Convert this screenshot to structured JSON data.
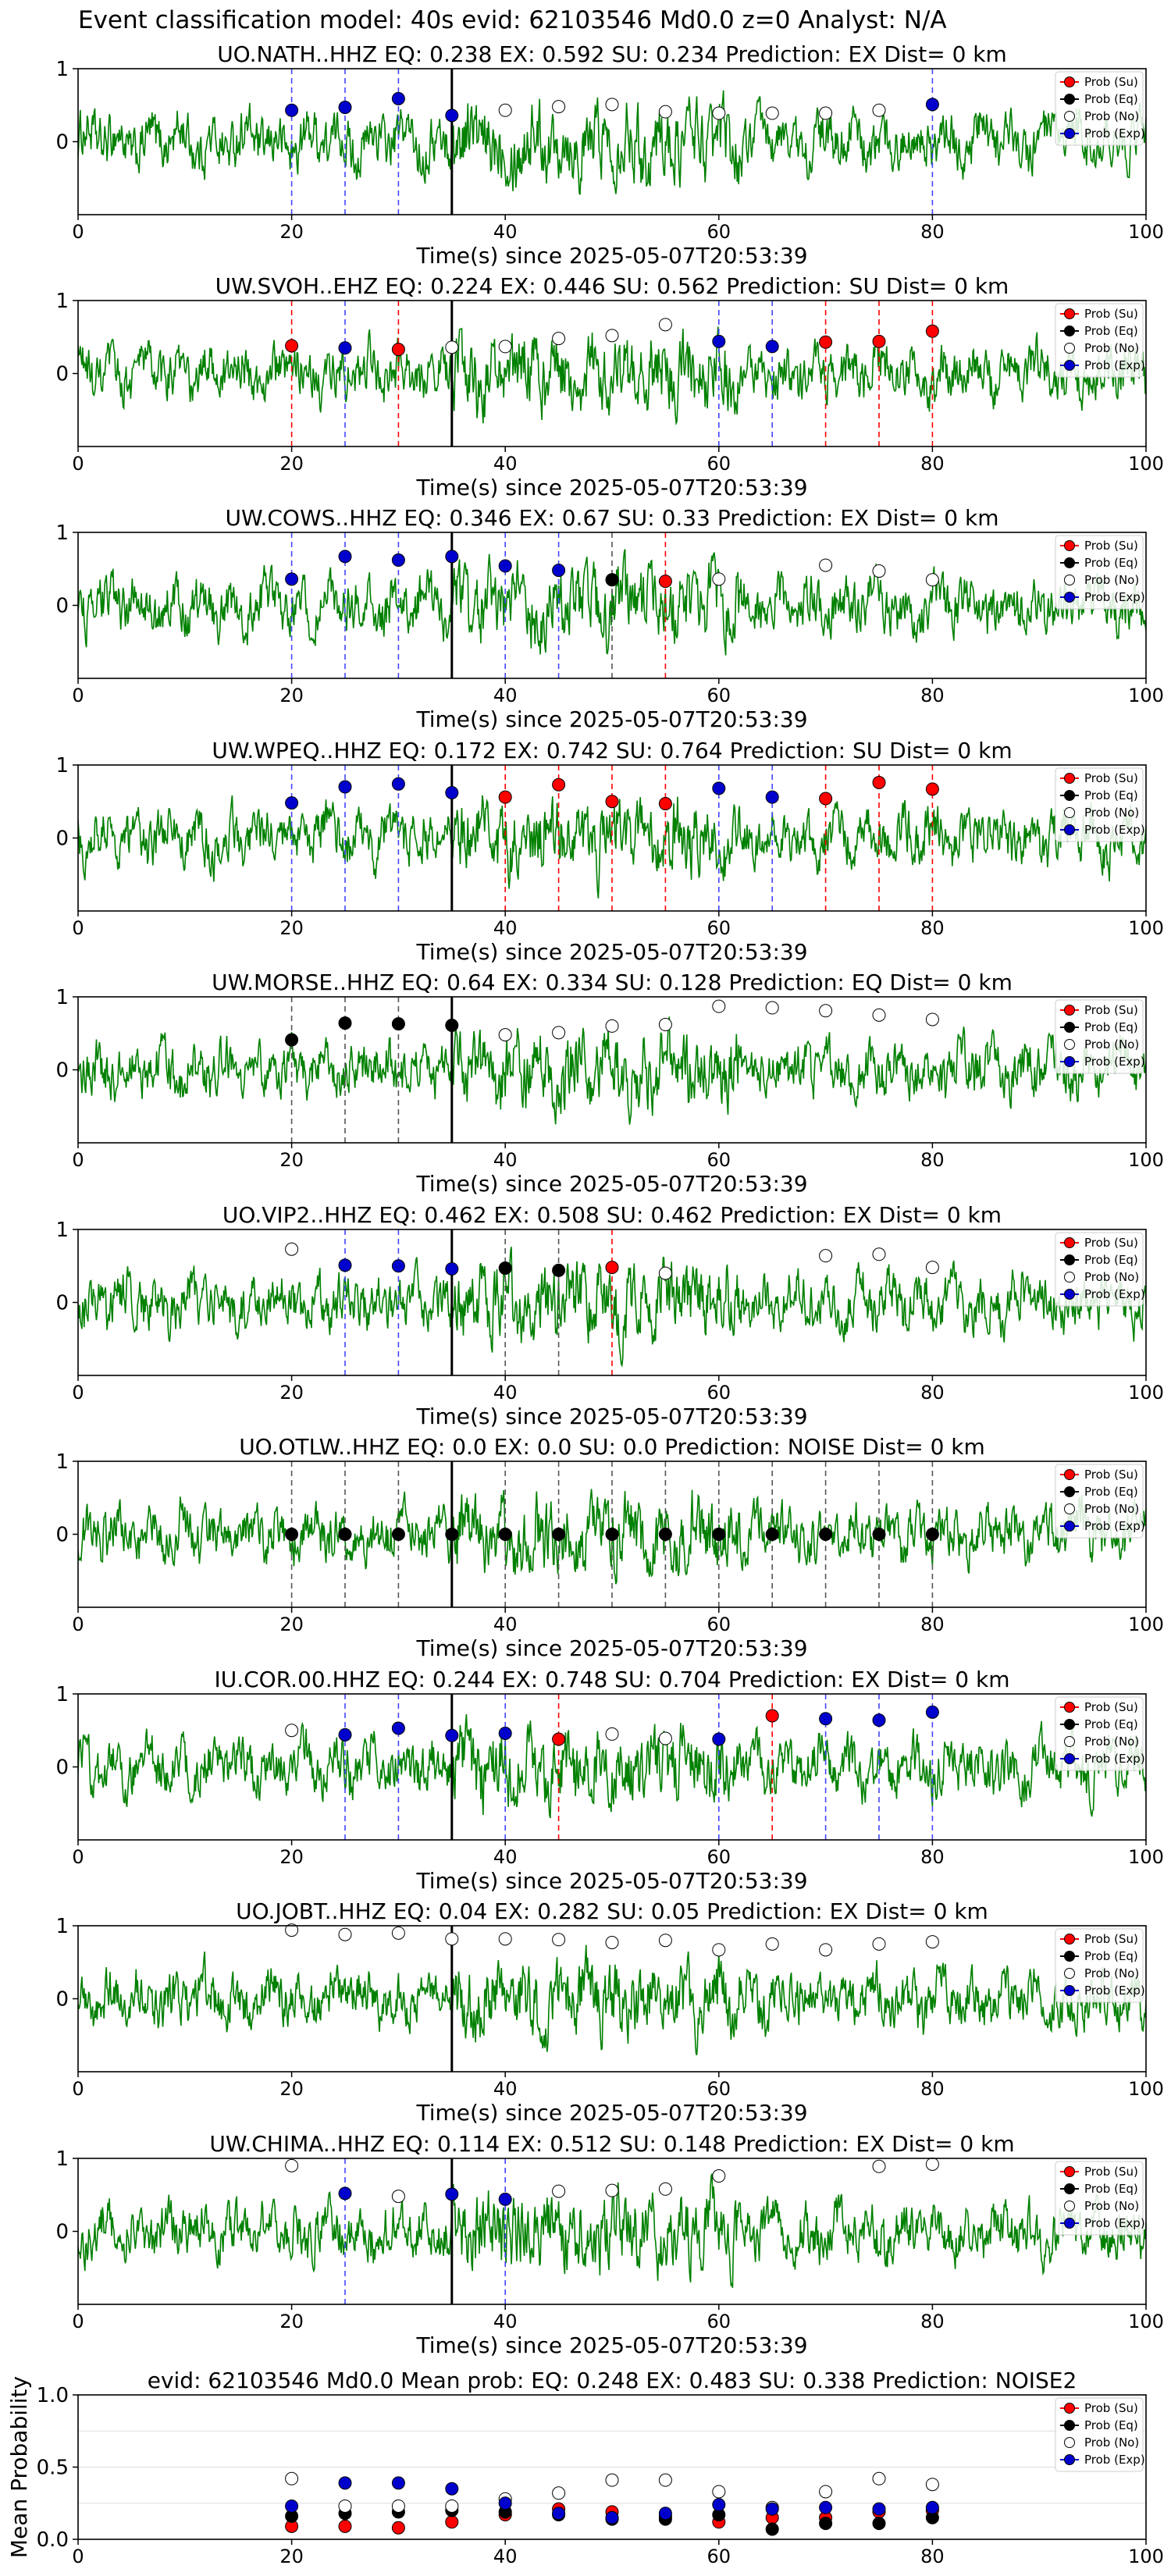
{
  "main_title": "Event classification model: 40s evid: 62103546 Md0.0 z=0 Analyst: N/A",
  "legend_labels": [
    "Prob (Su)",
    "Prob (Eq)",
    "Prob (No)",
    "Prob (Exp)"
  ],
  "colors": {
    "waveform": "#008000",
    "su": "#ff0000",
    "eq": "#000000",
    "no": "#ffffff",
    "exp": "#0000cd"
  },
  "chart_data": [
    {
      "type": "line",
      "title": "UO.NATH..HHZ   EQ: 0.238  EX: 0.592  SU: 0.234   Prediction: EX    Dist= 0 km",
      "xlabel": "Time(s) since 2025-05-07T20:53:39",
      "xlim": [
        0,
        100
      ],
      "ylim": [
        -1,
        1
      ],
      "xticks": [
        "0",
        "20",
        "40",
        "60",
        "80",
        "100"
      ],
      "yticks": [
        "1",
        "0"
      ],
      "event_marker_x": 35,
      "points": [
        {
          "x": 20,
          "y": 0.43,
          "cls": "exp"
        },
        {
          "x": 25,
          "y": 0.47,
          "cls": "exp"
        },
        {
          "x": 30,
          "y": 0.59,
          "cls": "exp"
        },
        {
          "x": 35,
          "y": 0.36,
          "cls": "exp"
        },
        {
          "x": 40,
          "y": 0.43,
          "cls": "no"
        },
        {
          "x": 45,
          "y": 0.48,
          "cls": "no"
        },
        {
          "x": 50,
          "y": 0.51,
          "cls": "no"
        },
        {
          "x": 55,
          "y": 0.41,
          "cls": "no"
        },
        {
          "x": 60,
          "y": 0.39,
          "cls": "no"
        },
        {
          "x": 65,
          "y": 0.39,
          "cls": "no"
        },
        {
          "x": 70,
          "y": 0.39,
          "cls": "no"
        },
        {
          "x": 75,
          "y": 0.43,
          "cls": "no"
        },
        {
          "x": 80,
          "y": 0.51,
          "cls": "exp"
        }
      ]
    },
    {
      "type": "line",
      "title": "UW.SVOH..EHZ   EQ: 0.224  EX: 0.446  SU: 0.562   Prediction: SU    Dist= 0 km",
      "xlabel": "Time(s) since 2025-05-07T20:53:39",
      "xlim": [
        0,
        100
      ],
      "ylim": [
        -1,
        1
      ],
      "xticks": [
        "0",
        "20",
        "40",
        "60",
        "80",
        "100"
      ],
      "yticks": [
        "1",
        "0"
      ],
      "event_marker_x": 35,
      "points": [
        {
          "x": 20,
          "y": 0.38,
          "cls": "su"
        },
        {
          "x": 25,
          "y": 0.35,
          "cls": "exp"
        },
        {
          "x": 30,
          "y": 0.33,
          "cls": "su"
        },
        {
          "x": 35,
          "y": 0.36,
          "cls": "no"
        },
        {
          "x": 40,
          "y": 0.37,
          "cls": "no"
        },
        {
          "x": 45,
          "y": 0.48,
          "cls": "no"
        },
        {
          "x": 50,
          "y": 0.52,
          "cls": "no"
        },
        {
          "x": 55,
          "y": 0.67,
          "cls": "no"
        },
        {
          "x": 60,
          "y": 0.44,
          "cls": "exp"
        },
        {
          "x": 65,
          "y": 0.37,
          "cls": "exp"
        },
        {
          "x": 70,
          "y": 0.43,
          "cls": "su"
        },
        {
          "x": 75,
          "y": 0.44,
          "cls": "su"
        },
        {
          "x": 80,
          "y": 0.58,
          "cls": "su"
        }
      ]
    },
    {
      "type": "line",
      "title": "UW.COWS..HHZ   EQ: 0.346  EX: 0.67  SU: 0.33   Prediction: EX    Dist= 0 km",
      "xlabel": "Time(s) since 2025-05-07T20:53:39",
      "xlim": [
        0,
        100
      ],
      "ylim": [
        -1,
        1
      ],
      "xticks": [
        "0",
        "20",
        "40",
        "60",
        "80",
        "100"
      ],
      "yticks": [
        "1",
        "0"
      ],
      "event_marker_x": 35,
      "points": [
        {
          "x": 20,
          "y": 0.36,
          "cls": "exp"
        },
        {
          "x": 25,
          "y": 0.67,
          "cls": "exp"
        },
        {
          "x": 30,
          "y": 0.62,
          "cls": "exp"
        },
        {
          "x": 35,
          "y": 0.67,
          "cls": "exp"
        },
        {
          "x": 40,
          "y": 0.54,
          "cls": "exp"
        },
        {
          "x": 45,
          "y": 0.48,
          "cls": "exp"
        },
        {
          "x": 50,
          "y": 0.35,
          "cls": "eq"
        },
        {
          "x": 55,
          "y": 0.33,
          "cls": "su"
        },
        {
          "x": 60,
          "y": 0.36,
          "cls": "no"
        },
        {
          "x": 70,
          "y": 0.55,
          "cls": "no"
        },
        {
          "x": 75,
          "y": 0.47,
          "cls": "no"
        },
        {
          "x": 80,
          "y": 0.35,
          "cls": "no"
        }
      ]
    },
    {
      "type": "line",
      "title": "UW.WPEQ..HHZ   EQ: 0.172  EX: 0.742  SU: 0.764   Prediction: SU    Dist= 0 km",
      "xlabel": "Time(s) since 2025-05-07T20:53:39",
      "xlim": [
        0,
        100
      ],
      "ylim": [
        -1,
        1
      ],
      "xticks": [
        "0",
        "20",
        "40",
        "60",
        "80",
        "100"
      ],
      "yticks": [
        "1",
        "0"
      ],
      "event_marker_x": 35,
      "points": [
        {
          "x": 20,
          "y": 0.48,
          "cls": "exp"
        },
        {
          "x": 25,
          "y": 0.7,
          "cls": "exp"
        },
        {
          "x": 30,
          "y": 0.74,
          "cls": "exp"
        },
        {
          "x": 35,
          "y": 0.62,
          "cls": "exp"
        },
        {
          "x": 40,
          "y": 0.56,
          "cls": "su"
        },
        {
          "x": 45,
          "y": 0.73,
          "cls": "su"
        },
        {
          "x": 50,
          "y": 0.5,
          "cls": "su"
        },
        {
          "x": 55,
          "y": 0.47,
          "cls": "su"
        },
        {
          "x": 60,
          "y": 0.68,
          "cls": "exp"
        },
        {
          "x": 65,
          "y": 0.56,
          "cls": "exp"
        },
        {
          "x": 70,
          "y": 0.54,
          "cls": "su"
        },
        {
          "x": 75,
          "y": 0.76,
          "cls": "su"
        },
        {
          "x": 80,
          "y": 0.67,
          "cls": "su"
        }
      ]
    },
    {
      "type": "line",
      "title": "UW.MORSE..HHZ   EQ: 0.64  EX: 0.334  SU: 0.128   Prediction: EQ    Dist= 0 km",
      "xlabel": "Time(s) since 2025-05-07T20:53:39",
      "xlim": [
        0,
        100
      ],
      "ylim": [
        -1,
        1
      ],
      "xticks": [
        "0",
        "20",
        "40",
        "60",
        "80",
        "100"
      ],
      "yticks": [
        "1",
        "0"
      ],
      "event_marker_x": 35,
      "points": [
        {
          "x": 20,
          "y": 0.41,
          "cls": "eq"
        },
        {
          "x": 25,
          "y": 0.64,
          "cls": "eq"
        },
        {
          "x": 30,
          "y": 0.63,
          "cls": "eq"
        },
        {
          "x": 35,
          "y": 0.61,
          "cls": "eq"
        },
        {
          "x": 40,
          "y": 0.48,
          "cls": "no"
        },
        {
          "x": 45,
          "y": 0.51,
          "cls": "no"
        },
        {
          "x": 50,
          "y": 0.6,
          "cls": "no"
        },
        {
          "x": 55,
          "y": 0.62,
          "cls": "no"
        },
        {
          "x": 60,
          "y": 0.87,
          "cls": "no"
        },
        {
          "x": 65,
          "y": 0.85,
          "cls": "no"
        },
        {
          "x": 70,
          "y": 0.81,
          "cls": "no"
        },
        {
          "x": 75,
          "y": 0.75,
          "cls": "no"
        },
        {
          "x": 80,
          "y": 0.69,
          "cls": "no"
        }
      ]
    },
    {
      "type": "line",
      "title": "UO.VIP2..HHZ   EQ: 0.462  EX: 0.508  SU: 0.462   Prediction: EX    Dist= 0 km",
      "xlabel": "Time(s) since 2025-05-07T20:53:39",
      "xlim": [
        0,
        100
      ],
      "ylim": [
        -1,
        1
      ],
      "xticks": [
        "0",
        "20",
        "40",
        "60",
        "80",
        "100"
      ],
      "yticks": [
        "1",
        "0"
      ],
      "event_marker_x": 35,
      "points": [
        {
          "x": 20,
          "y": 0.73,
          "cls": "no"
        },
        {
          "x": 25,
          "y": 0.51,
          "cls": "exp"
        },
        {
          "x": 30,
          "y": 0.5,
          "cls": "exp"
        },
        {
          "x": 35,
          "y": 0.46,
          "cls": "exp"
        },
        {
          "x": 40,
          "y": 0.47,
          "cls": "eq"
        },
        {
          "x": 45,
          "y": 0.44,
          "cls": "eq"
        },
        {
          "x": 50,
          "y": 0.48,
          "cls": "su"
        },
        {
          "x": 55,
          "y": 0.4,
          "cls": "no"
        },
        {
          "x": 70,
          "y": 0.64,
          "cls": "no"
        },
        {
          "x": 75,
          "y": 0.66,
          "cls": "no"
        },
        {
          "x": 80,
          "y": 0.48,
          "cls": "no"
        }
      ]
    },
    {
      "type": "line",
      "title": "UO.OTLW..HHZ   EQ: 0.0  EX: 0.0  SU: 0.0   Prediction: NOISE    Dist= 0 km",
      "xlabel": "Time(s) since 2025-05-07T20:53:39",
      "xlim": [
        0,
        100
      ],
      "ylim": [
        -1,
        1
      ],
      "xticks": [
        "0",
        "20",
        "40",
        "60",
        "80",
        "100"
      ],
      "yticks": [
        "1",
        "0"
      ],
      "event_marker_x": 35,
      "points": [
        {
          "x": 20,
          "y": 0.0,
          "cls": "eq"
        },
        {
          "x": 25,
          "y": 0.0,
          "cls": "eq"
        },
        {
          "x": 30,
          "y": 0.0,
          "cls": "eq"
        },
        {
          "x": 35,
          "y": 0.0,
          "cls": "eq"
        },
        {
          "x": 40,
          "y": 0.0,
          "cls": "eq"
        },
        {
          "x": 45,
          "y": 0.0,
          "cls": "eq"
        },
        {
          "x": 50,
          "y": 0.0,
          "cls": "eq"
        },
        {
          "x": 55,
          "y": 0.0,
          "cls": "eq"
        },
        {
          "x": 60,
          "y": 0.0,
          "cls": "eq"
        },
        {
          "x": 65,
          "y": 0.0,
          "cls": "eq"
        },
        {
          "x": 70,
          "y": 0.0,
          "cls": "eq"
        },
        {
          "x": 75,
          "y": 0.0,
          "cls": "eq"
        },
        {
          "x": 80,
          "y": 0.0,
          "cls": "eq"
        }
      ]
    },
    {
      "type": "line",
      "title": "IU.COR.00.HHZ   EQ: 0.244  EX: 0.748  SU: 0.704   Prediction: EX    Dist= 0 km",
      "xlabel": "Time(s) since 2025-05-07T20:53:39",
      "xlim": [
        0,
        100
      ],
      "ylim": [
        -1,
        1
      ],
      "xticks": [
        "0",
        "20",
        "40",
        "60",
        "80",
        "100"
      ],
      "yticks": [
        "1",
        "0"
      ],
      "event_marker_x": 35,
      "points": [
        {
          "x": 20,
          "y": 0.5,
          "cls": "no"
        },
        {
          "x": 25,
          "y": 0.44,
          "cls": "exp"
        },
        {
          "x": 30,
          "y": 0.53,
          "cls": "exp"
        },
        {
          "x": 35,
          "y": 0.43,
          "cls": "exp"
        },
        {
          "x": 40,
          "y": 0.46,
          "cls": "exp"
        },
        {
          "x": 45,
          "y": 0.38,
          "cls": "su"
        },
        {
          "x": 50,
          "y": 0.45,
          "cls": "no"
        },
        {
          "x": 55,
          "y": 0.39,
          "cls": "no"
        },
        {
          "x": 60,
          "y": 0.38,
          "cls": "exp"
        },
        {
          "x": 65,
          "y": 0.7,
          "cls": "su"
        },
        {
          "x": 70,
          "y": 0.66,
          "cls": "exp"
        },
        {
          "x": 75,
          "y": 0.64,
          "cls": "exp"
        },
        {
          "x": 80,
          "y": 0.75,
          "cls": "exp"
        }
      ]
    },
    {
      "type": "line",
      "title": "UO.JOBT..HHZ   EQ: 0.04  EX: 0.282  SU: 0.05   Prediction: EX    Dist= 0 km",
      "xlabel": "Time(s) since 2025-05-07T20:53:39",
      "xlim": [
        0,
        100
      ],
      "ylim": [
        -1,
        1
      ],
      "xticks": [
        "0",
        "20",
        "40",
        "60",
        "80",
        "100"
      ],
      "yticks": [
        "1",
        "0"
      ],
      "event_marker_x": 35,
      "points": [
        {
          "x": 20,
          "y": 0.94,
          "cls": "no"
        },
        {
          "x": 25,
          "y": 0.88,
          "cls": "no"
        },
        {
          "x": 30,
          "y": 0.9,
          "cls": "no"
        },
        {
          "x": 35,
          "y": 0.82,
          "cls": "no"
        },
        {
          "x": 40,
          "y": 0.82,
          "cls": "no"
        },
        {
          "x": 45,
          "y": 0.81,
          "cls": "no"
        },
        {
          "x": 50,
          "y": 0.77,
          "cls": "no"
        },
        {
          "x": 55,
          "y": 0.8,
          "cls": "no"
        },
        {
          "x": 60,
          "y": 0.67,
          "cls": "no"
        },
        {
          "x": 65,
          "y": 0.75,
          "cls": "no"
        },
        {
          "x": 70,
          "y": 0.67,
          "cls": "no"
        },
        {
          "x": 75,
          "y": 0.75,
          "cls": "no"
        },
        {
          "x": 80,
          "y": 0.78,
          "cls": "no"
        }
      ]
    },
    {
      "type": "line",
      "title": "UW.CHIMA..HHZ   EQ: 0.114  EX: 0.512  SU: 0.148   Prediction: EX    Dist= 0 km",
      "xlabel": "Time(s) since 2025-05-07T20:53:39",
      "xlim": [
        0,
        100
      ],
      "ylim": [
        -1,
        1
      ],
      "xticks": [
        "0",
        "20",
        "40",
        "60",
        "80",
        "100"
      ],
      "yticks": [
        "1",
        "0"
      ],
      "event_marker_x": 35,
      "points": [
        {
          "x": 20,
          "y": 0.9,
          "cls": "no"
        },
        {
          "x": 25,
          "y": 0.52,
          "cls": "exp"
        },
        {
          "x": 30,
          "y": 0.48,
          "cls": "no"
        },
        {
          "x": 35,
          "y": 0.51,
          "cls": "exp"
        },
        {
          "x": 40,
          "y": 0.44,
          "cls": "exp"
        },
        {
          "x": 45,
          "y": 0.55,
          "cls": "no"
        },
        {
          "x": 50,
          "y": 0.56,
          "cls": "no"
        },
        {
          "x": 55,
          "y": 0.58,
          "cls": "no"
        },
        {
          "x": 60,
          "y": 0.76,
          "cls": "no"
        },
        {
          "x": 75,
          "y": 0.89,
          "cls": "no"
        },
        {
          "x": 80,
          "y": 0.92,
          "cls": "no"
        }
      ]
    },
    {
      "type": "scatter",
      "title": "evid: 62103546  Md0.0   Mean prob:   EQ: 0.248  EX: 0.483  SU: 0.338   Prediction: NOISE2",
      "ylabel": "Mean Probability",
      "xlim": [
        0,
        100
      ],
      "ylim": [
        0,
        1
      ],
      "xticks": [
        "0",
        "20",
        "40",
        "60",
        "80",
        "100"
      ],
      "yticks": [
        "0.0",
        "0.5",
        "1.0"
      ],
      "grid": true,
      "x": [
        20,
        25,
        30,
        35,
        40,
        45,
        50,
        55,
        60,
        65,
        70,
        75,
        80
      ],
      "series": [
        {
          "name": "Prob (Su)",
          "cls": "su",
          "values": [
            0.09,
            0.09,
            0.08,
            0.12,
            0.17,
            0.21,
            0.19,
            0.16,
            0.12,
            0.15,
            0.15,
            0.19,
            0.2
          ]
        },
        {
          "name": "Prob (Eq)",
          "cls": "eq",
          "values": [
            0.16,
            0.18,
            0.19,
            0.2,
            0.19,
            0.17,
            0.14,
            0.14,
            0.17,
            0.07,
            0.11,
            0.11,
            0.15
          ]
        },
        {
          "name": "Prob (No)",
          "cls": "no",
          "values": [
            0.42,
            0.23,
            0.23,
            0.23,
            0.28,
            0.32,
            0.41,
            0.41,
            0.33,
            0.22,
            0.33,
            0.42,
            0.38
          ]
        },
        {
          "name": "Prob (Exp)",
          "cls": "exp",
          "values": [
            0.23,
            0.39,
            0.39,
            0.35,
            0.25,
            0.18,
            0.15,
            0.18,
            0.24,
            0.21,
            0.22,
            0.21,
            0.22
          ]
        }
      ]
    }
  ]
}
